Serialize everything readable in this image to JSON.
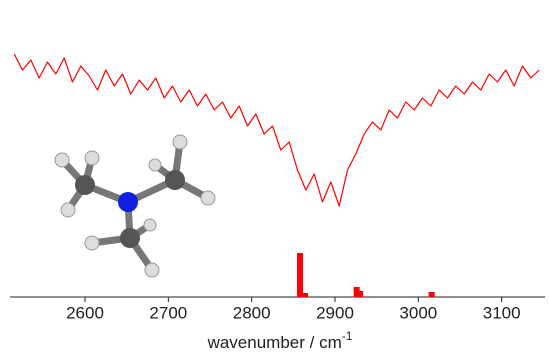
{
  "chart_data": [
    {
      "type": "line",
      "color": "#ff0000",
      "x": [
        2515,
        2525,
        2535,
        2545,
        2555,
        2565,
        2575,
        2585,
        2595,
        2605,
        2615,
        2625,
        2635,
        2645,
        2655,
        2665,
        2675,
        2685,
        2695,
        2705,
        2715,
        2725,
        2735,
        2745,
        2755,
        2765,
        2775,
        2785,
        2795,
        2805,
        2815,
        2825,
        2835,
        2845,
        2855,
        2865,
        2875,
        2885,
        2895,
        2905,
        2915,
        2925,
        2935,
        2945,
        2955,
        2965,
        2975,
        2985,
        2995,
        3005,
        3015,
        3025,
        3035,
        3045,
        3055,
        3065,
        3075,
        3085,
        3095,
        3105,
        3115,
        3125,
        3135,
        3145
      ],
      "values": [
        88,
        80,
        85,
        76,
        84,
        78,
        86,
        74,
        82,
        77,
        70,
        80,
        72,
        78,
        68,
        75,
        70,
        76,
        66,
        72,
        64,
        70,
        62,
        68,
        60,
        64,
        56,
        62,
        52,
        58,
        48,
        52,
        40,
        44,
        30,
        20,
        28,
        14,
        24,
        12,
        30,
        38,
        48,
        54,
        50,
        60,
        56,
        64,
        60,
        66,
        62,
        70,
        66,
        72,
        68,
        74,
        70,
        78,
        74,
        80,
        72,
        82,
        76,
        80
      ],
      "xlim": [
        2510,
        3152
      ],
      "ylim": [
        0,
        100
      ],
      "xticks": [
        2600,
        2700,
        2800,
        2900,
        3000,
        3100
      ],
      "xlabel": "wavenumber / cm",
      "xlabel_superscript": "-1"
    },
    {
      "type": "bar",
      "color": "#ff0000",
      "x": [
        2858,
        2864,
        2926,
        2930,
        3016
      ],
      "values": [
        44,
        4,
        10,
        6,
        5
      ],
      "xlim": [
        2510,
        3152
      ],
      "ylim": [
        0,
        50
      ]
    }
  ]
}
